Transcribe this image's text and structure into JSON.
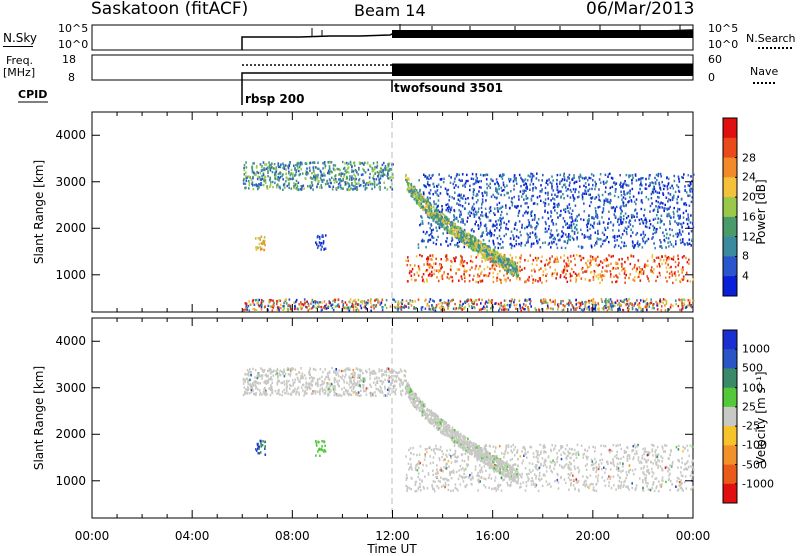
{
  "header": {
    "station": "Saskatoon (fitACF)",
    "beam": "Beam 14",
    "date": "06/Mar/2013"
  },
  "strips": {
    "nsky_label": "N.Sky",
    "nsky_top_tick": "10^5",
    "nsky_bottom_tick": "10^0",
    "nsearch_label": "N.Search",
    "nsearch_top_tick": "10^5",
    "nsearch_bottom_tick": "10^0",
    "freq_label_1": "Freq.",
    "freq_label_2": "[MHz]",
    "freq_ticks": [
      "18",
      "8"
    ],
    "nave_label": "Nave",
    "nave_ticks": [
      "60",
      "0"
    ],
    "cpid_label": "CPID",
    "cpid_modes": [
      {
        "name": "rbsp 200",
        "start": "06:00"
      },
      {
        "name": "twofsound 3501",
        "start": "12:00"
      }
    ]
  },
  "chart_data": [
    {
      "type": "heatmap",
      "title": "",
      "parameter": "Power",
      "xlabel": "",
      "ylabel": "Slant Range [km]",
      "xlim": [
        "00:00",
        "24:00"
      ],
      "ylim": [
        200,
        4500
      ],
      "yticks": [
        "1000",
        "2000",
        "3000",
        "4000"
      ],
      "colorbar": {
        "label": "Power [dB]",
        "ticks": [
          "4",
          "8",
          "12",
          "16",
          "20",
          "24",
          "28"
        ],
        "colors": [
          "#0a1fd8",
          "#2a55cc",
          "#3a8aa0",
          "#4b9a6a",
          "#9ac94a",
          "#f3c23a",
          "#f28a2a",
          "#ea4a1a",
          "#e01010"
        ]
      },
      "regions": [
        {
          "from_ut": 6.0,
          "to_ut": 12.0,
          "range_km": [
            2850,
            3450
          ],
          "power_db": "8-16"
        },
        {
          "from_ut": 6.5,
          "to_ut": 6.9,
          "range_km": [
            1550,
            1900
          ],
          "power_db": "16-24"
        },
        {
          "from_ut": 8.9,
          "to_ut": 9.3,
          "range_km": [
            1550,
            1900
          ],
          "power_db": "4-8"
        },
        {
          "from_ut": 12.5,
          "to_ut": 24.0,
          "range_km": [
            850,
            1450
          ],
          "power_db": "20-28"
        },
        {
          "from_ut": 13.0,
          "to_ut": 24.0,
          "range_km": [
            1600,
            3200
          ],
          "power_db": "4-8"
        },
        {
          "from_ut": 6.0,
          "to_ut": 24.0,
          "range_km": [
            250,
            500
          ],
          "power_db": "4-16"
        }
      ]
    },
    {
      "type": "heatmap",
      "title": "",
      "parameter": "Velocity",
      "xlabel": "Time UT",
      "ylabel": "Slant Range [km]",
      "xlim": [
        "00:00",
        "24:00"
      ],
      "ylim": [
        200,
        4500
      ],
      "xticks": [
        "00:00",
        "04:00",
        "08:00",
        "12:00",
        "16:00",
        "20:00",
        "00:00"
      ],
      "yticks": [
        "1000",
        "2000",
        "3000",
        "4000"
      ],
      "colorbar": {
        "label": "Velocity [m s⁻¹]",
        "ticks": [
          "1000",
          "500",
          "100",
          "25",
          "-25",
          "-100",
          "-500",
          "-1000"
        ],
        "colors": [
          "#1a2fd0",
          "#2a55c6",
          "#3a8a6a",
          "#52c83a",
          "#c8c8c4",
          "#f6c42a",
          "#f2902a",
          "#ea5a1a",
          "#e01010"
        ]
      },
      "regions": [
        {
          "from_ut": 6.0,
          "to_ut": 12.5,
          "range_km": [
            2850,
            3450
          ],
          "velocity_ms": "-25 to 25"
        },
        {
          "from_ut": 6.5,
          "to_ut": 6.9,
          "range_km": [
            1550,
            1900
          ],
          "velocity_ms": "100 to 1000"
        },
        {
          "from_ut": 8.9,
          "to_ut": 9.3,
          "range_km": [
            1550,
            1900
          ],
          "velocity_ms": "25 to 100"
        },
        {
          "from_ut": 12.5,
          "to_ut": 24.0,
          "range_km": [
            800,
            1800
          ],
          "velocity_ms": "-25 to 25"
        }
      ]
    }
  ]
}
